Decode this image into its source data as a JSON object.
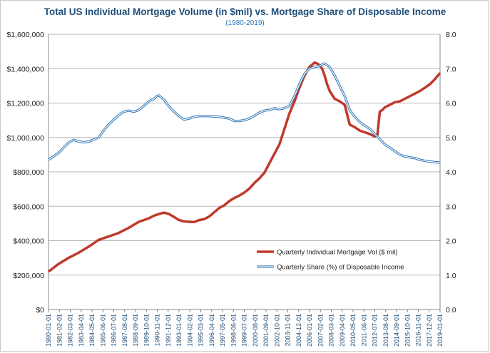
{
  "chart_data": {
    "type": "line",
    "title": "Total US Individual Mortgage Volume (in $mil) vs. Mortgage Share of  Disposable Income",
    "subtitle": "(1980-2019)",
    "left_axis": {
      "ylim": [
        0,
        1600000
      ],
      "ticks": [
        "$0",
        "$200,000",
        "$400,000",
        "$600,000",
        "$800,000",
        "$1,000,000",
        "$1,200,000",
        "$1,400,000",
        "$1,600,000"
      ],
      "tick_values": [
        0,
        200000,
        400000,
        600000,
        800000,
        1000000,
        1200000,
        1400000,
        1600000
      ]
    },
    "right_axis": {
      "ylim": [
        0,
        8
      ],
      "ticks": [
        "0.0",
        "1.0",
        "2.0",
        "3.0",
        "4.0",
        "5.0",
        "6.0",
        "7.0",
        "8.0"
      ],
      "tick_values": [
        0,
        1,
        2,
        3,
        4,
        5,
        6,
        7,
        8
      ]
    },
    "x_ticks": [
      "1980-01-01",
      "1981-02-01",
      "1982-03-01",
      "1983-04-01",
      "1984-05-01",
      "1985-06-01",
      "1986-07-01",
      "1987-08-01",
      "1988-09-01",
      "1989-10-01",
      "1990-11-01",
      "1991-12-01",
      "1993-01-01",
      "1994-02-01",
      "1995-03-01",
      "1996-04-01",
      "1997-05-01",
      "1998-06-01",
      "1999-07-01",
      "2000-08-01",
      "2001-09-01",
      "2002-10-01",
      "2003-11-01",
      "2004-12-01",
      "2006-01-01",
      "2007-02-01",
      "2008-03-01",
      "2009-04-01",
      "2010-05-01",
      "2011-06-01",
      "2012-07-01",
      "2013-08-01",
      "2014-09-01",
      "2015-10-01",
      "2016-11-01",
      "2017-12-01",
      "2019-01-01"
    ],
    "grid": "horizontal",
    "legend_position": "bottom-right",
    "series": [
      {
        "name": "Quarterly Individual Mortgage Vol ($ mil)",
        "axis": "left",
        "color": "#c0392b",
        "x": [
          1980.0,
          1981.0,
          1982.0,
          1983.0,
          1984.0,
          1985.0,
          1986.0,
          1987.0,
          1988.0,
          1989.0,
          1990.0,
          1990.5,
          1991.0,
          1991.5,
          1992.0,
          1992.5,
          1993.0,
          1993.5,
          1994.0,
          1994.5,
          1995.0,
          1995.5,
          1996.0,
          1996.5,
          1997.0,
          1997.5,
          1998.0,
          1998.5,
          1999.0,
          1999.5,
          2000.0,
          2000.5,
          2001.0,
          2001.5,
          2002.0,
          2002.5,
          2003.0,
          2003.5,
          2004.0,
          2004.5,
          2005.0,
          2005.5,
          2006.0,
          2006.5,
          2006.75,
          2007.0,
          2007.25,
          2007.5,
          2007.75,
          2008.0,
          2008.5,
          2009.0,
          2009.5,
          2010.0,
          2010.5,
          2011.0,
          2011.5,
          2012.0,
          2012.5,
          2012.75,
          2013.0,
          2013.25,
          2013.5,
          2014.0,
          2014.5,
          2015.0,
          2015.5,
          2016.0,
          2016.5,
          2017.0,
          2017.5,
          2018.0,
          2018.5,
          2019.0
        ],
        "values": [
          220000,
          265000,
          300000,
          330000,
          365000,
          405000,
          425000,
          445000,
          475000,
          510000,
          530000,
          545000,
          555000,
          563000,
          555000,
          538000,
          520000,
          512000,
          510000,
          508000,
          520000,
          525000,
          540000,
          565000,
          590000,
          605000,
          630000,
          648000,
          662000,
          680000,
          702000,
          735000,
          762000,
          795000,
          850000,
          905000,
          960000,
          1050000,
          1140000,
          1210000,
          1290000,
          1360000,
          1410000,
          1435000,
          1430000,
          1420000,
          1400000,
          1360000,
          1310000,
          1270000,
          1225000,
          1210000,
          1190000,
          1075000,
          1060000,
          1040000,
          1030000,
          1020000,
          1005000,
          1010000,
          1150000,
          1160000,
          1175000,
          1190000,
          1205000,
          1210000,
          1225000,
          1240000,
          1255000,
          1270000,
          1290000,
          1310000,
          1340000,
          1375000
        ]
      },
      {
        "name": "Quarterly Share (%) of Disposable Income",
        "axis": "right",
        "color": "#2e75b6",
        "x": [
          1980.0,
          1981.0,
          1981.5,
          1982.0,
          1982.5,
          1983.0,
          1983.5,
          1984.0,
          1985.0,
          1985.5,
          1986.0,
          1986.5,
          1987.0,
          1987.5,
          1988.0,
          1988.5,
          1989.0,
          1989.5,
          1990.0,
          1990.5,
          1990.8,
          1991.0,
          1991.5,
          1992.0,
          1992.5,
          1993.0,
          1993.5,
          1994.0,
          1994.5,
          1995.0,
          1996.0,
          1997.0,
          1998.0,
          1998.5,
          1999.0,
          1999.5,
          2000.0,
          2000.5,
          2001.0,
          2001.5,
          2002.0,
          2002.5,
          2003.0,
          2003.5,
          2004.0,
          2004.5,
          2005.0,
          2005.5,
          2006.0,
          2006.5,
          2007.0,
          2007.25,
          2007.5,
          2008.0,
          2008.5,
          2009.0,
          2009.5,
          2010.0,
          2010.5,
          2011.0,
          2011.5,
          2012.0,
          2012.5,
          2013.0,
          2013.5,
          2014.0,
          2014.5,
          2015.0,
          2015.5,
          2016.0,
          2016.5,
          2017.0,
          2017.5,
          2018.0,
          2018.5,
          2019.0
        ],
        "values": [
          4.35,
          4.55,
          4.7,
          4.85,
          4.93,
          4.88,
          4.86,
          4.88,
          5.0,
          5.2,
          5.38,
          5.52,
          5.65,
          5.75,
          5.78,
          5.75,
          5.8,
          5.92,
          6.05,
          6.12,
          6.2,
          6.22,
          6.1,
          5.9,
          5.75,
          5.62,
          5.52,
          5.55,
          5.6,
          5.62,
          5.62,
          5.6,
          5.55,
          5.48,
          5.48,
          5.5,
          5.55,
          5.63,
          5.72,
          5.78,
          5.8,
          5.85,
          5.82,
          5.85,
          5.92,
          6.2,
          6.55,
          6.85,
          7.0,
          7.05,
          7.08,
          7.12,
          7.15,
          7.05,
          6.8,
          6.5,
          6.2,
          5.8,
          5.6,
          5.45,
          5.35,
          5.25,
          5.1,
          4.95,
          4.8,
          4.7,
          4.6,
          4.5,
          4.45,
          4.42,
          4.4,
          4.35,
          4.32,
          4.3,
          4.28,
          4.27
        ]
      }
    ]
  }
}
